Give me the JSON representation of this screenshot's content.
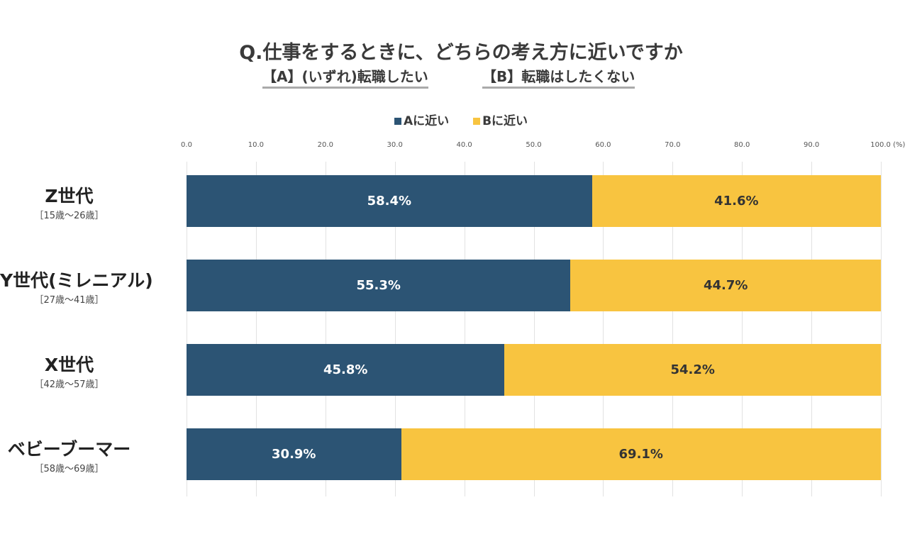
{
  "chart_data": {
    "type": "bar",
    "orientation": "horizontal",
    "stacked": true,
    "title": "Q.仕事をするときに、どちらの考え方に近いですか",
    "subtitle_a": "【A】(いずれ)転職したい",
    "subtitle_b": "【B】転職はしたくない",
    "categories": [
      {
        "name": "Z世代",
        "age": "［15歳〜26歳］"
      },
      {
        "name": "Y世代(ミレニアル)",
        "age": "［27歳〜41歳］"
      },
      {
        "name": "X世代",
        "age": "［42歳〜57歳］"
      },
      {
        "name": "ベビーブーマー",
        "age": "［58歳〜69歳］"
      }
    ],
    "series": [
      {
        "name": "Aに近い",
        "color": "#2c5474",
        "values": [
          58.4,
          55.3,
          45.8,
          30.9
        ],
        "labels": [
          "58.4%",
          "55.3%",
          "45.8%",
          "30.9%"
        ]
      },
      {
        "name": "Bに近い",
        "color": "#f8c440",
        "values": [
          41.6,
          44.7,
          54.2,
          69.1
        ],
        "labels": [
          "41.6%",
          "44.7%",
          "54.2%",
          "69.1%"
        ]
      }
    ],
    "xlim": [
      0,
      100
    ],
    "xticks": [
      "0.0",
      "10.0",
      "20.0",
      "30.0",
      "40.0",
      "50.0",
      "60.0",
      "70.0",
      "80.0",
      "90.0",
      "100.0"
    ],
    "xunit": "(%)",
    "grid": true,
    "legend": "top-center"
  }
}
